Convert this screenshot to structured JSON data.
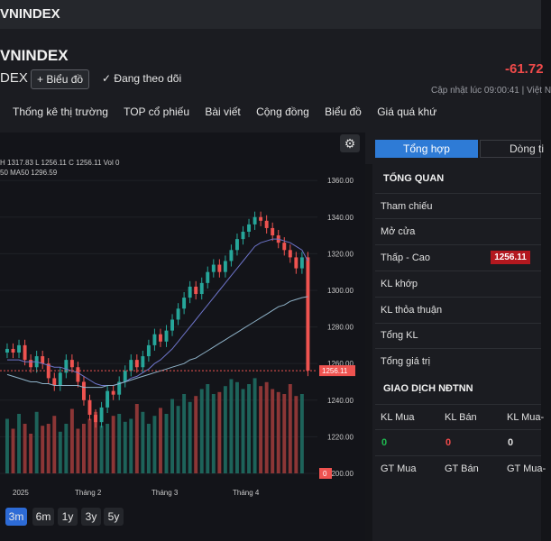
{
  "topbar": {
    "title": "VNINDEX"
  },
  "header": {
    "title": "VNINDEX",
    "subtitle": "DEX",
    "chart_button": "Biểu đồ",
    "follow_label": "Đang theo dõi",
    "change": "-61.72",
    "updated": "Cập nhật lúc 09:00:41 | Việt N"
  },
  "nav": [
    "Thống kê thị trường",
    "TOP cổ phiếu",
    "Bài viết",
    "Cộng đồng",
    "Biểu đồ",
    "Giá quá khứ"
  ],
  "chart": {
    "legend_ohlc": "H 1317.83  L 1256.11  C 1256.11  Vol 0",
    "legend_ma": "50  MA50 1296.59",
    "last_price_label": "1256.11",
    "volume_label": "0",
    "timeframes": [
      "3m",
      "6m",
      "1y",
      "3y",
      "5y"
    ],
    "selected_timeframe": "3m"
  },
  "chart_data": {
    "type": "candlestick",
    "y_ticks": [
      1360,
      1340,
      1320,
      1300,
      1280,
      1260,
      1240,
      1220,
      1200
    ],
    "ylim": [
      1200,
      1365
    ],
    "x_tick_labels": [
      "2025",
      "Tháng 2",
      "Tháng 3",
      "Tháng 4"
    ],
    "last_close": 1256.11,
    "closes": [
      1268,
      1266,
      1270,
      1262,
      1258,
      1264,
      1260,
      1252,
      1248,
      1255,
      1262,
      1258,
      1250,
      1240,
      1232,
      1228,
      1236,
      1245,
      1243,
      1250,
      1256,
      1262,
      1258,
      1264,
      1270,
      1276,
      1272,
      1278,
      1284,
      1290,
      1296,
      1302,
      1298,
      1304,
      1310,
      1314,
      1310,
      1316,
      1322,
      1328,
      1332,
      1336,
      1340,
      1338,
      1334,
      1330,
      1326,
      1322,
      1318,
      1312,
      1318,
      1256.11
    ],
    "volumes": [
      0.55,
      0.45,
      0.6,
      0.5,
      0.4,
      0.62,
      0.48,
      0.5,
      0.58,
      0.42,
      0.5,
      0.65,
      0.45,
      0.5,
      0.55,
      0.62,
      0.48,
      0.5,
      0.58,
      0.6,
      0.52,
      0.55,
      0.7,
      0.62,
      0.5,
      0.58,
      0.66,
      0.6,
      0.75,
      0.68,
      0.8,
      0.72,
      0.78,
      0.85,
      0.9,
      0.8,
      0.82,
      0.88,
      0.95,
      0.92,
      0.85,
      0.9,
      0.96,
      0.88,
      0.92,
      0.85,
      0.82,
      0.8,
      0.9,
      0.78,
      0.8,
      0.0
    ],
    "ma_short": [
      1262,
      1262,
      1262,
      1261,
      1261,
      1261,
      1260,
      1259,
      1258,
      1258,
      1257,
      1256,
      1255,
      1253,
      1251,
      1249,
      1248,
      1248,
      1248,
      1249,
      1250,
      1252,
      1253,
      1255,
      1257,
      1260,
      1262,
      1265,
      1268,
      1272,
      1276,
      1280,
      1284,
      1288,
      1292,
      1296,
      1300,
      1304,
      1308,
      1312,
      1316,
      1320,
      1324,
      1326,
      1327,
      1328,
      1328,
      1327,
      1326,
      1324,
      1322,
      1316
    ],
    "ma_long": [
      1254,
      1253,
      1252,
      1251,
      1250,
      1250,
      1249,
      1249,
      1248,
      1248,
      1248,
      1248,
      1248,
      1247,
      1247,
      1247,
      1247,
      1248,
      1248,
      1249,
      1250,
      1251,
      1252,
      1253,
      1254,
      1255,
      1256,
      1257,
      1258,
      1259,
      1260,
      1262,
      1263,
      1265,
      1267,
      1269,
      1271,
      1273,
      1275,
      1277,
      1279,
      1281,
      1283,
      1285,
      1287,
      1289,
      1291,
      1292,
      1294,
      1295,
      1296,
      1296.59
    ]
  },
  "panel": {
    "tab_active": "Tổng hợp",
    "tab_inactive": "Dòng ti",
    "overview_title": "TỔNG QUAN",
    "rows": [
      "Tham chiếu",
      "Mở cửa",
      "Thấp - Cao",
      "KL khớp",
      "KL thỏa thuận",
      "Tổng KL",
      "Tổng giá trị"
    ],
    "low_value": "1256.11",
    "foreign_title": "GIAO DỊCH NĐTNN",
    "foreign_headers": [
      "KL Mua",
      "KL Bán",
      "KL Mua-"
    ],
    "foreign_values": [
      "0",
      "0",
      "0"
    ],
    "value_headers": [
      "GT Mua",
      "GT Bán",
      "GT Mua-"
    ],
    "colors": {
      "up": "#26a69a",
      "down": "#ef5350",
      "accent": "#2e7bd6",
      "buy": "#1fb84f",
      "sell": "#f04a4a"
    }
  }
}
